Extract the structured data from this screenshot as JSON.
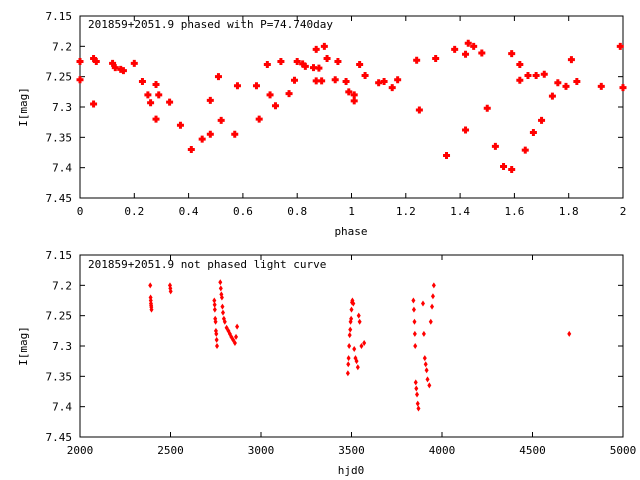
{
  "chart_data": [
    {
      "type": "scatter",
      "title": "201859+2051.9 phased with P=74.740day",
      "xlabel": "phase",
      "ylabel": "I[mag]",
      "xlim": [
        0,
        2
      ],
      "ylim": [
        7.45,
        7.15
      ],
      "y_inverted": true,
      "grid": false,
      "x_ticks": [
        "0",
        "0.2",
        "0.4",
        "0.6",
        "0.8",
        "1",
        "1.2",
        "1.4",
        "1.6",
        "1.8",
        "2"
      ],
      "y_ticks": [
        "7.15",
        "7.2",
        "7.25",
        "7.3",
        "7.35",
        "7.4",
        "7.45"
      ],
      "marker_color": "#ff0000",
      "series": [
        {
          "x": [
            0.0,
            0.0,
            0.05,
            0.05,
            0.06,
            0.12,
            0.13,
            0.15,
            0.16,
            0.2,
            0.23,
            0.25,
            0.26,
            0.28,
            0.28,
            0.29,
            0.33,
            0.37,
            0.41,
            0.45,
            0.48,
            0.48,
            0.51,
            0.52,
            0.57,
            0.58,
            0.65,
            0.66,
            0.69,
            0.7,
            0.72,
            0.74,
            0.77,
            0.79,
            0.8,
            0.82,
            0.83,
            0.86,
            0.87,
            0.87,
            0.88,
            0.89,
            0.9,
            0.91,
            0.94,
            0.95,
            0.98,
            0.99,
            1.01,
            1.01,
            1.03,
            1.05,
            1.1,
            1.12,
            1.15,
            1.17,
            1.24,
            1.25,
            1.31,
            1.35,
            1.38,
            1.42,
            1.42,
            1.43,
            1.45,
            1.48,
            1.5,
            1.53,
            1.56,
            1.59,
            1.59,
            1.62,
            1.62,
            1.64,
            1.65,
            1.67,
            1.68,
            1.7,
            1.71,
            1.74,
            1.76,
            1.79,
            1.81,
            1.83,
            1.92,
            1.99,
            2.0
          ],
          "y": [
            7.225,
            7.255,
            7.22,
            7.295,
            7.225,
            7.228,
            7.235,
            7.238,
            7.24,
            7.228,
            7.258,
            7.28,
            7.293,
            7.263,
            7.32,
            7.28,
            7.292,
            7.33,
            7.37,
            7.353,
            7.345,
            7.289,
            7.25,
            7.322,
            7.345,
            7.265,
            7.265,
            7.32,
            7.23,
            7.28,
            7.298,
            7.225,
            7.278,
            7.256,
            7.225,
            7.229,
            7.233,
            7.235,
            7.205,
            7.257,
            7.236,
            7.257,
            7.2,
            7.22,
            7.255,
            7.225,
            7.258,
            7.275,
            7.29,
            7.28,
            7.23,
            7.248,
            7.26,
            7.258,
            7.268,
            7.255,
            7.223,
            7.305,
            7.22,
            7.38,
            7.205,
            7.213,
            7.338,
            7.195,
            7.2,
            7.211,
            7.302,
            7.365,
            7.398,
            7.403,
            7.212,
            7.23,
            7.256,
            7.371,
            7.248,
            7.342,
            7.248,
            7.322,
            7.246,
            7.282,
            7.26,
            7.266,
            7.222,
            7.258,
            7.266,
            7.2,
            7.268
          ]
        }
      ]
    },
    {
      "type": "scatter",
      "title": "201859+2051.9 not phased light curve",
      "xlabel": "hjd0",
      "ylabel": "I[mag]",
      "xlim": [
        2000,
        5000
      ],
      "ylim": [
        7.45,
        7.15
      ],
      "y_inverted": true,
      "grid": false,
      "x_ticks": [
        "2000",
        "2500",
        "3000",
        "3500",
        "4000",
        "4500",
        "5000"
      ],
      "y_ticks": [
        "7.15",
        "7.2",
        "7.25",
        "7.3",
        "7.35",
        "7.4",
        "7.45"
      ],
      "marker_color": "#ff0000",
      "series": [
        {
          "x": [
            2388,
            2390,
            2391,
            2392,
            2393,
            2394,
            2395,
            2497,
            2499,
            2501,
            2742,
            2744,
            2745,
            2747,
            2749,
            2751,
            2753,
            2755,
            2757,
            2775,
            2778,
            2781,
            2784,
            2787,
            2790,
            2795,
            2800,
            2810,
            2820,
            2828,
            2836,
            2846,
            2856,
            2862,
            2868,
            3480,
            3482,
            3484,
            3487,
            3490,
            3493,
            3495,
            3498,
            3500,
            3503,
            3505,
            3510,
            3515,
            3522,
            3528,
            3535,
            3540,
            3545,
            3555,
            3570,
            3842,
            3845,
            3848,
            3850,
            3852,
            3855,
            3858,
            3862,
            3866,
            3870,
            3895,
            3900,
            3905,
            3910,
            3915,
            3920,
            3930,
            3938,
            3945,
            3950,
            3955,
            4703
          ],
          "y": [
            7.2,
            7.22,
            7.225,
            7.23,
            7.233,
            7.236,
            7.24,
            7.2,
            7.205,
            7.21,
            7.225,
            7.232,
            7.24,
            7.255,
            7.26,
            7.275,
            7.28,
            7.29,
            7.3,
            7.195,
            7.205,
            7.215,
            7.22,
            7.235,
            7.245,
            7.255,
            7.26,
            7.27,
            7.275,
            7.28,
            7.285,
            7.29,
            7.295,
            7.285,
            7.268,
            7.345,
            7.33,
            7.32,
            7.3,
            7.282,
            7.273,
            7.26,
            7.255,
            7.24,
            7.228,
            7.225,
            7.23,
            7.305,
            7.32,
            7.325,
            7.335,
            7.25,
            7.26,
            7.3,
            7.295,
            7.225,
            7.24,
            7.26,
            7.28,
            7.3,
            7.36,
            7.37,
            7.38,
            7.395,
            7.403,
            7.23,
            7.28,
            7.32,
            7.33,
            7.34,
            7.355,
            7.365,
            7.26,
            7.235,
            7.218,
            7.2,
            7.28
          ]
        }
      ]
    }
  ]
}
